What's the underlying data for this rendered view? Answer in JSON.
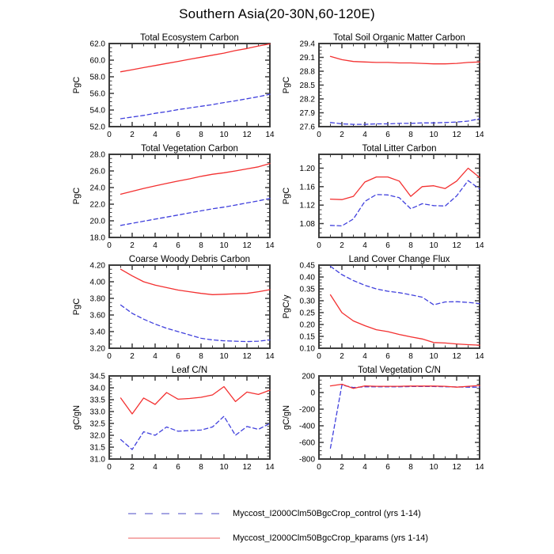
{
  "page_title": "Southern Asia(20-30N,60-120E)",
  "colors": {
    "frame": "#3d3d3d",
    "tick_label": "#000000",
    "control": "#4040dd",
    "kparams": "#f33030"
  },
  "legend": [
    {
      "name": "control",
      "style": "dashed",
      "color": "#6f6fd0",
      "label": "Myccost_I2000Clm50BgcCrop_control (yrs 1-14)"
    },
    {
      "name": "kparams",
      "style": "solid",
      "color": "#ef7d7d",
      "label": "Myccost_I2000Clm50BgcCrop_kparams (yrs 1-14)"
    }
  ],
  "chart_data": [
    {
      "type": "line",
      "title": "Total Ecosystem Carbon",
      "ylabel": "PgC",
      "ylim": [
        52.0,
        62.0
      ],
      "yticks": [
        52.0,
        54.0,
        56.0,
        58.0,
        60.0,
        62.0
      ],
      "ytick_labels": [
        "52.0",
        "54.0",
        "56.0",
        "58.0",
        "60.0",
        "62.0"
      ],
      "yminor_step": 0.5,
      "xlim": [
        0,
        14
      ],
      "xticks": [
        0,
        2,
        4,
        6,
        8,
        10,
        12,
        14
      ],
      "xminor_step": 1,
      "x": [
        1,
        2,
        3,
        4,
        5,
        6,
        7,
        8,
        9,
        10,
        11,
        12,
        13,
        14
      ],
      "series": [
        {
          "name": "control",
          "style": "dashed",
          "values": [
            52.95,
            53.15,
            53.35,
            53.6,
            53.8,
            54.05,
            54.25,
            54.45,
            54.65,
            54.9,
            55.1,
            55.35,
            55.6,
            55.9
          ]
        },
        {
          "name": "kparams",
          "style": "solid",
          "values": [
            58.6,
            58.85,
            59.1,
            59.35,
            59.6,
            59.85,
            60.1,
            60.35,
            60.6,
            60.85,
            61.15,
            61.4,
            61.7,
            61.95
          ]
        }
      ]
    },
    {
      "type": "line",
      "title": "Total Soil Organic Matter Carbon",
      "ylabel": "PgC",
      "ylim": [
        27.6,
        29.4
      ],
      "yticks": [
        27.6,
        27.9,
        28.2,
        28.5,
        28.8,
        29.1,
        29.4
      ],
      "ytick_labels": [
        "27.6",
        "27.9",
        "28.2",
        "28.5",
        "28.8",
        "29.1",
        "29.4"
      ],
      "yminor_step": 0.075,
      "xlim": [
        0,
        14
      ],
      "xticks": [
        0,
        2,
        4,
        6,
        8,
        10,
        12,
        14
      ],
      "xminor_step": 1,
      "x": [
        1,
        2,
        3,
        4,
        5,
        6,
        7,
        8,
        9,
        10,
        11,
        12,
        13,
        14
      ],
      "series": [
        {
          "name": "control",
          "style": "dashed",
          "values": [
            27.69,
            27.66,
            27.65,
            27.65,
            27.66,
            27.66,
            27.67,
            27.67,
            27.68,
            27.68,
            27.69,
            27.7,
            27.72,
            27.77
          ]
        },
        {
          "name": "kparams",
          "style": "solid",
          "values": [
            29.12,
            29.05,
            29.01,
            29.0,
            28.99,
            28.99,
            28.98,
            28.98,
            28.97,
            28.96,
            28.96,
            28.97,
            28.99,
            29.0
          ]
        }
      ]
    },
    {
      "type": "line",
      "title": "Total Vegetation Carbon",
      "ylabel": "PgC",
      "ylim": [
        18.0,
        28.0
      ],
      "yticks": [
        18.0,
        20.0,
        22.0,
        24.0,
        26.0,
        28.0
      ],
      "ytick_labels": [
        "18.0",
        "20.0",
        "22.0",
        "24.0",
        "26.0",
        "28.0"
      ],
      "yminor_step": 0.5,
      "xlim": [
        0,
        14
      ],
      "xticks": [
        0,
        2,
        4,
        6,
        8,
        10,
        12,
        14
      ],
      "xminor_step": 1,
      "x": [
        1,
        2,
        3,
        4,
        5,
        6,
        7,
        8,
        9,
        10,
        11,
        12,
        13,
        14
      ],
      "series": [
        {
          "name": "control",
          "style": "dashed",
          "values": [
            19.45,
            19.7,
            19.95,
            20.2,
            20.45,
            20.7,
            20.95,
            21.2,
            21.45,
            21.65,
            21.9,
            22.15,
            22.4,
            22.7
          ]
        },
        {
          "name": "kparams",
          "style": "solid",
          "values": [
            23.2,
            23.55,
            23.9,
            24.2,
            24.5,
            24.78,
            25.05,
            25.35,
            25.6,
            25.78,
            26.0,
            26.25,
            26.5,
            26.9
          ]
        }
      ]
    },
    {
      "type": "line",
      "title": "Total Litter Carbon",
      "ylabel": "PgC",
      "ylim": [
        1.05,
        1.23
      ],
      "yticks": [
        1.08,
        1.12,
        1.16,
        1.2
      ],
      "ytick_labels": [
        "1.08",
        "1.12",
        "1.16",
        "1.20"
      ],
      "yminor_step": 0.01,
      "xlim": [
        0,
        14
      ],
      "xticks": [
        0,
        2,
        4,
        6,
        8,
        10,
        12,
        14
      ],
      "xminor_step": 1,
      "x": [
        1,
        2,
        3,
        4,
        5,
        6,
        7,
        8,
        9,
        10,
        11,
        12,
        13,
        14
      ],
      "series": [
        {
          "name": "control",
          "style": "dashed",
          "values": [
            1.076,
            1.075,
            1.09,
            1.128,
            1.143,
            1.142,
            1.136,
            1.112,
            1.123,
            1.119,
            1.118,
            1.14,
            1.173,
            1.155
          ]
        },
        {
          "name": "kparams",
          "style": "solid",
          "values": [
            1.133,
            1.132,
            1.139,
            1.17,
            1.181,
            1.181,
            1.172,
            1.139,
            1.16,
            1.162,
            1.156,
            1.172,
            1.2,
            1.18
          ]
        }
      ]
    },
    {
      "type": "line",
      "title": "Coarse Woody Debris Carbon",
      "ylabel": "PgC",
      "ylim": [
        3.2,
        4.2
      ],
      "yticks": [
        3.2,
        3.4,
        3.6,
        3.8,
        4.0,
        4.2
      ],
      "ytick_labels": [
        "3.20",
        "3.40",
        "3.60",
        "3.80",
        "4.00",
        "4.20"
      ],
      "yminor_step": 0.05,
      "xlim": [
        0,
        14
      ],
      "xticks": [
        0,
        2,
        4,
        6,
        8,
        10,
        12,
        14
      ],
      "xminor_step": 1,
      "x": [
        1,
        2,
        3,
        4,
        5,
        6,
        7,
        8,
        9,
        10,
        11,
        12,
        13,
        14
      ],
      "series": [
        {
          "name": "control",
          "style": "dashed",
          "values": [
            3.72,
            3.62,
            3.55,
            3.49,
            3.44,
            3.4,
            3.36,
            3.32,
            3.3,
            3.29,
            3.285,
            3.28,
            3.285,
            3.3
          ]
        },
        {
          "name": "kparams",
          "style": "solid",
          "values": [
            4.15,
            4.07,
            4.0,
            3.96,
            3.93,
            3.9,
            3.88,
            3.86,
            3.845,
            3.85,
            3.855,
            3.86,
            3.88,
            3.905
          ]
        }
      ]
    },
    {
      "type": "line",
      "title": "Land Cover Change Flux",
      "ylabel": "PgC/y",
      "ylim": [
        0.1,
        0.45
      ],
      "yticks": [
        0.1,
        0.15,
        0.2,
        0.25,
        0.3,
        0.35,
        0.4,
        0.45
      ],
      "ytick_labels": [
        "0.10",
        "0.15",
        "0.20",
        "0.25",
        "0.30",
        "0.35",
        "0.40",
        "0.45"
      ],
      "yminor_step": 0.0125,
      "xlim": [
        0,
        14
      ],
      "xticks": [
        0,
        2,
        4,
        6,
        8,
        10,
        12,
        14
      ],
      "xminor_step": 1,
      "x": [
        1,
        2,
        3,
        4,
        5,
        6,
        7,
        8,
        9,
        10,
        11,
        12,
        13,
        14
      ],
      "series": [
        {
          "name": "control",
          "style": "dashed",
          "values": [
            0.445,
            0.41,
            0.385,
            0.365,
            0.35,
            0.34,
            0.334,
            0.325,
            0.315,
            0.283,
            0.295,
            0.296,
            0.293,
            0.288
          ]
        },
        {
          "name": "kparams",
          "style": "solid",
          "values": [
            0.325,
            0.25,
            0.215,
            0.195,
            0.178,
            0.17,
            0.158,
            0.148,
            0.139,
            0.124,
            0.122,
            0.118,
            0.115,
            0.113
          ]
        }
      ]
    },
    {
      "type": "line",
      "title": "Leaf C/N",
      "ylabel": "gC/gN",
      "ylim": [
        31.0,
        34.5
      ],
      "yticks": [
        31.0,
        31.5,
        32.0,
        32.5,
        33.0,
        33.5,
        34.0,
        34.5
      ],
      "ytick_labels": [
        "31.0",
        "31.5",
        "32.0",
        "32.5",
        "33.0",
        "33.5",
        "34.0",
        "34.5"
      ],
      "yminor_step": 0.125,
      "xlim": [
        0,
        14
      ],
      "xticks": [
        0,
        2,
        4,
        6,
        8,
        10,
        12,
        14
      ],
      "xminor_step": 1,
      "x": [
        1,
        2,
        3,
        4,
        5,
        6,
        7,
        8,
        9,
        10,
        11,
        12,
        13,
        14
      ],
      "series": [
        {
          "name": "control",
          "style": "dashed",
          "values": [
            31.82,
            31.4,
            32.15,
            32.0,
            32.35,
            32.17,
            32.2,
            32.22,
            32.35,
            32.8,
            32.0,
            32.37,
            32.25,
            32.5
          ]
        },
        {
          "name": "kparams",
          "style": "solid",
          "values": [
            33.57,
            32.9,
            33.57,
            33.3,
            33.8,
            33.52,
            33.55,
            33.6,
            33.7,
            34.05,
            33.42,
            33.82,
            33.72,
            33.9
          ]
        }
      ]
    },
    {
      "type": "line",
      "title": "Total Vegetation C/N",
      "ylabel": "gC/gN",
      "ylim": [
        -800,
        200
      ],
      "yticks": [
        -800,
        -600,
        -400,
        -200,
        0,
        200
      ],
      "ytick_labels": [
        "-800",
        "-600",
        "-400",
        "-200",
        "0",
        "200"
      ],
      "yminor_step": 50,
      "xlim": [
        0,
        14
      ],
      "xticks": [
        0,
        2,
        4,
        6,
        8,
        10,
        12,
        14
      ],
      "xminor_step": 1,
      "x": [
        1,
        2,
        3,
        4,
        5,
        6,
        7,
        8,
        9,
        10,
        11,
        12,
        13,
        14
      ],
      "series": [
        {
          "name": "control",
          "style": "dashed",
          "values": [
            -670,
            90,
            60,
            70,
            70,
            70,
            70,
            72,
            72,
            72,
            70,
            68,
            65,
            65
          ]
        },
        {
          "name": "kparams",
          "style": "solid",
          "values": [
            80,
            100,
            50,
            80,
            75,
            75,
            75,
            78,
            78,
            78,
            75,
            65,
            75,
            85
          ]
        }
      ]
    }
  ]
}
